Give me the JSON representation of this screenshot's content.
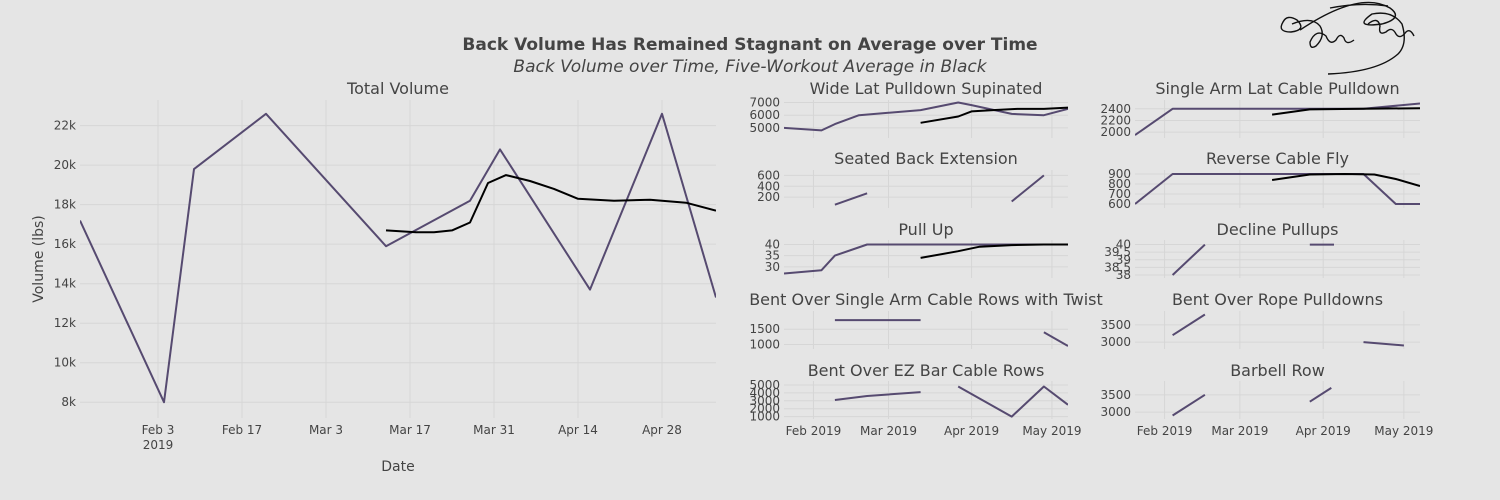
{
  "title": "Back Volume Has Remained Stagnant on Average over Time",
  "subtitle": "Back Volume over Time, Five-Workout Average in Black",
  "colors": {
    "series": "#564a70",
    "average": "#000000",
    "background": "#e5e5e5",
    "grid": "#d6d6d6",
    "text": "#444444"
  },
  "chart_data": [
    {
      "type": "line",
      "title": "Total Volume",
      "xlabel": "Date",
      "ylabel": "Volume (lbs)",
      "xlim": [
        "2019-01-21",
        "2019-05-07"
      ],
      "ylim": [
        7200,
        23300
      ],
      "xticks": [
        {
          "value": "2019-02-03",
          "label": "Feb 3",
          "label2": "2019"
        },
        {
          "value": "2019-02-17",
          "label": "Feb 17"
        },
        {
          "value": "2019-03-03",
          "label": "Mar 3"
        },
        {
          "value": "2019-03-17",
          "label": "Mar 17"
        },
        {
          "value": "2019-03-31",
          "label": "Mar 31"
        },
        {
          "value": "2019-04-14",
          "label": "Apr 14"
        },
        {
          "value": "2019-04-28",
          "label": "Apr 28"
        }
      ],
      "yticks": [
        {
          "value": 8000,
          "label": "8k"
        },
        {
          "value": 10000,
          "label": "10k"
        },
        {
          "value": 12000,
          "label": "12k"
        },
        {
          "value": 14000,
          "label": "14k"
        },
        {
          "value": 16000,
          "label": "16k"
        },
        {
          "value": 18000,
          "label": "18k"
        },
        {
          "value": 20000,
          "label": "20k"
        },
        {
          "value": 22000,
          "label": "22k"
        }
      ],
      "series": [
        {
          "role": "volume",
          "x": [
            "2019-01-21",
            "2019-02-04",
            "2019-02-09",
            "2019-02-21",
            "2019-03-13",
            "2019-03-27",
            "2019-04-01",
            "2019-04-16",
            "2019-04-28",
            "2019-05-07"
          ],
          "y": [
            17200,
            8000,
            19800,
            22600,
            15900,
            18200,
            20800,
            13700,
            22600,
            13300
          ]
        },
        {
          "role": "average",
          "x": [
            "2019-03-13",
            "2019-03-18",
            "2019-03-21",
            "2019-03-24",
            "2019-03-27",
            "2019-03-30",
            "2019-04-02",
            "2019-04-06",
            "2019-04-10",
            "2019-04-14",
            "2019-04-20",
            "2019-04-26",
            "2019-05-02",
            "2019-05-07"
          ],
          "y": [
            16700,
            16600,
            16600,
            16700,
            17100,
            19100,
            19500,
            19200,
            18800,
            18300,
            18200,
            18250,
            18100,
            17700
          ]
        }
      ]
    },
    {
      "type": "line",
      "title": "Wide Lat Pulldown Supinated",
      "xlim": [
        "2019-01-21",
        "2019-05-07"
      ],
      "ylim": [
        4200,
        7200
      ],
      "yticks": [
        {
          "value": 5000,
          "label": "5000"
        },
        {
          "value": 6000,
          "label": "6000"
        },
        {
          "value": 7000,
          "label": "7000"
        }
      ],
      "series": [
        {
          "role": "volume",
          "x": [
            "2019-01-21",
            "2019-02-04",
            "2019-02-09",
            "2019-02-18",
            "2019-03-13",
            "2019-03-27",
            "2019-04-01",
            "2019-04-16",
            "2019-04-28",
            "2019-05-07"
          ],
          "y": [
            5000,
            4800,
            5300,
            6000,
            6400,
            7000,
            6800,
            6100,
            6000,
            6500
          ]
        },
        {
          "role": "average",
          "x": [
            "2019-03-13",
            "2019-03-27",
            "2019-04-01",
            "2019-04-09",
            "2019-04-18",
            "2019-04-28",
            "2019-05-07"
          ],
          "y": [
            5400,
            5900,
            6300,
            6400,
            6500,
            6500,
            6600
          ]
        }
      ]
    },
    {
      "type": "line",
      "title": "Single Arm Lat Cable Pulldown",
      "xlim": [
        "2019-01-21",
        "2019-05-07"
      ],
      "ylim": [
        1900,
        2550
      ],
      "yticks": [
        {
          "value": 2000,
          "label": "2000"
        },
        {
          "value": 2200,
          "label": "2200"
        },
        {
          "value": 2400,
          "label": "2400"
        }
      ],
      "series": [
        {
          "role": "volume",
          "x": [
            "2019-01-21",
            "2019-02-04",
            "2019-03-13",
            "2019-04-16",
            "2019-05-07"
          ],
          "y": [
            1950,
            2400,
            2400,
            2400,
            2490
          ]
        },
        {
          "role": "average",
          "x": [
            "2019-03-13",
            "2019-03-27",
            "2019-04-16",
            "2019-05-07"
          ],
          "y": [
            2300,
            2390,
            2400,
            2410
          ]
        }
      ]
    },
    {
      "type": "line",
      "title": "Seated Back Extension",
      "xlim": [
        "2019-01-21",
        "2019-05-07"
      ],
      "ylim": [
        0,
        700
      ],
      "yticks": [
        {
          "value": 200,
          "label": "200"
        },
        {
          "value": 400,
          "label": "400"
        },
        {
          "value": 600,
          "label": "600"
        }
      ],
      "series": [
        {
          "role": "volume",
          "x": [
            "2019-02-09",
            "2019-02-21"
          ],
          "y": [
            60,
            270
          ]
        },
        {
          "role": "volume",
          "x": [
            "2019-04-16",
            "2019-04-28"
          ],
          "y": [
            120,
            600
          ]
        }
      ]
    },
    {
      "type": "line",
      "title": "Reverse Cable Fly",
      "xlim": [
        "2019-01-21",
        "2019-05-07"
      ],
      "ylim": [
        560,
        940
      ],
      "yticks": [
        {
          "value": 600,
          "label": "600"
        },
        {
          "value": 700,
          "label": "700"
        },
        {
          "value": 800,
          "label": "800"
        },
        {
          "value": 900,
          "label": "900"
        }
      ],
      "series": [
        {
          "role": "volume",
          "x": [
            "2019-01-21",
            "2019-02-04",
            "2019-03-13",
            "2019-04-16",
            "2019-04-28",
            "2019-05-07"
          ],
          "y": [
            600,
            900,
            900,
            900,
            600,
            600
          ]
        },
        {
          "role": "average",
          "x": [
            "2019-03-13",
            "2019-03-27",
            "2019-04-09",
            "2019-04-20",
            "2019-04-28",
            "2019-05-07"
          ],
          "y": [
            840,
            895,
            900,
            895,
            850,
            780
          ]
        }
      ]
    },
    {
      "type": "line",
      "title": "Pull Up",
      "xlim": [
        "2019-01-21",
        "2019-05-07"
      ],
      "ylim": [
        25,
        42
      ],
      "yticks": [
        {
          "value": 30,
          "label": "30"
        },
        {
          "value": 35,
          "label": "35"
        },
        {
          "value": 40,
          "label": "40"
        }
      ],
      "series": [
        {
          "role": "volume",
          "x": [
            "2019-01-21",
            "2019-02-04",
            "2019-02-09",
            "2019-02-21",
            "2019-05-07"
          ],
          "y": [
            27,
            28.5,
            35,
            40,
            40
          ]
        },
        {
          "role": "average",
          "x": [
            "2019-03-13",
            "2019-03-27",
            "2019-04-04",
            "2019-04-16",
            "2019-04-28",
            "2019-05-07"
          ],
          "y": [
            34,
            37,
            39,
            39.7,
            40,
            40
          ]
        }
      ]
    },
    {
      "type": "line",
      "title": "Decline Pullups",
      "xlim": [
        "2019-01-21",
        "2019-05-07"
      ],
      "ylim": [
        37.8,
        40.3
      ],
      "yticks": [
        {
          "value": 38,
          "label": "38"
        },
        {
          "value": 38.5,
          "label": "38.5"
        },
        {
          "value": 39,
          "label": "39"
        },
        {
          "value": 39.5,
          "label": "39.5"
        },
        {
          "value": 40,
          "label": "40"
        }
      ],
      "series": [
        {
          "role": "volume",
          "x": [
            "2019-02-04",
            "2019-02-16"
          ],
          "y": [
            38,
            40
          ]
        },
        {
          "role": "volume",
          "x": [
            "2019-03-27",
            "2019-04-05"
          ],
          "y": [
            40,
            40
          ]
        }
      ]
    },
    {
      "type": "line",
      "title": "Bent Over Single Arm Cable Rows with Twist",
      "xlim": [
        "2019-01-21",
        "2019-05-07"
      ],
      "ylim": [
        850,
        2100
      ],
      "yticks": [
        {
          "value": 1000,
          "label": "1000"
        },
        {
          "value": 1500,
          "label": "1500"
        }
      ],
      "series": [
        {
          "role": "volume",
          "x": [
            "2019-02-09",
            "2019-03-13"
          ],
          "y": [
            1800,
            1800
          ]
        },
        {
          "role": "volume",
          "x": [
            "2019-04-28",
            "2019-05-07"
          ],
          "y": [
            1400,
            950
          ]
        }
      ]
    },
    {
      "type": "line",
      "title": "Bent Over Rope Pulldowns",
      "xlim": [
        "2019-01-21",
        "2019-05-07"
      ],
      "ylim": [
        2800,
        3900
      ],
      "yticks": [
        {
          "value": 3000,
          "label": "3000"
        },
        {
          "value": 3500,
          "label": "3500"
        }
      ],
      "series": [
        {
          "role": "volume",
          "x": [
            "2019-02-04",
            "2019-02-16"
          ],
          "y": [
            3200,
            3800
          ]
        },
        {
          "role": "volume",
          "x": [
            "2019-04-16",
            "2019-05-01"
          ],
          "y": [
            3000,
            2900
          ]
        }
      ]
    },
    {
      "type": "line",
      "title": "Bent Over EZ Bar Cable Rows",
      "xlim": [
        "2019-01-21",
        "2019-05-07"
      ],
      "ylim": [
        700,
        5500
      ],
      "yticks": [
        {
          "value": 1000,
          "label": "1000"
        },
        {
          "value": 2000,
          "label": "2000"
        },
        {
          "value": 3000,
          "label": "3000"
        },
        {
          "value": 4000,
          "label": "4000"
        },
        {
          "value": 5000,
          "label": "5000"
        }
      ],
      "xticks": [
        {
          "value": "2019-02-01",
          "label": "Feb 2019"
        },
        {
          "value": "2019-03-01",
          "label": "Mar 2019"
        },
        {
          "value": "2019-04-01",
          "label": "Apr 2019"
        },
        {
          "value": "2019-05-01",
          "label": "May 2019"
        }
      ],
      "series": [
        {
          "role": "volume",
          "x": [
            "2019-02-09",
            "2019-02-21",
            "2019-03-13"
          ],
          "y": [
            3100,
            3600,
            4100
          ]
        },
        {
          "role": "volume",
          "x": [
            "2019-03-27",
            "2019-04-16",
            "2019-04-28",
            "2019-05-07"
          ],
          "y": [
            4800,
            1000,
            4800,
            2500
          ]
        }
      ]
    },
    {
      "type": "line",
      "title": "Barbell Row",
      "xlim": [
        "2019-01-21",
        "2019-05-07"
      ],
      "ylim": [
        2800,
        3900
      ],
      "yticks": [
        {
          "value": 3000,
          "label": "3000"
        },
        {
          "value": 3500,
          "label": "3500"
        }
      ],
      "xticks": [
        {
          "value": "2019-02-01",
          "label": "Feb 2019"
        },
        {
          "value": "2019-03-01",
          "label": "Mar 2019"
        },
        {
          "value": "2019-04-01",
          "label": "Apr 2019"
        },
        {
          "value": "2019-05-01",
          "label": "May 2019"
        }
      ],
      "series": [
        {
          "role": "volume",
          "x": [
            "2019-02-04",
            "2019-02-16"
          ],
          "y": [
            2900,
            3500
          ]
        },
        {
          "role": "volume",
          "x": [
            "2019-03-27",
            "2019-04-04"
          ],
          "y": [
            3300,
            3700
          ]
        }
      ]
    }
  ]
}
